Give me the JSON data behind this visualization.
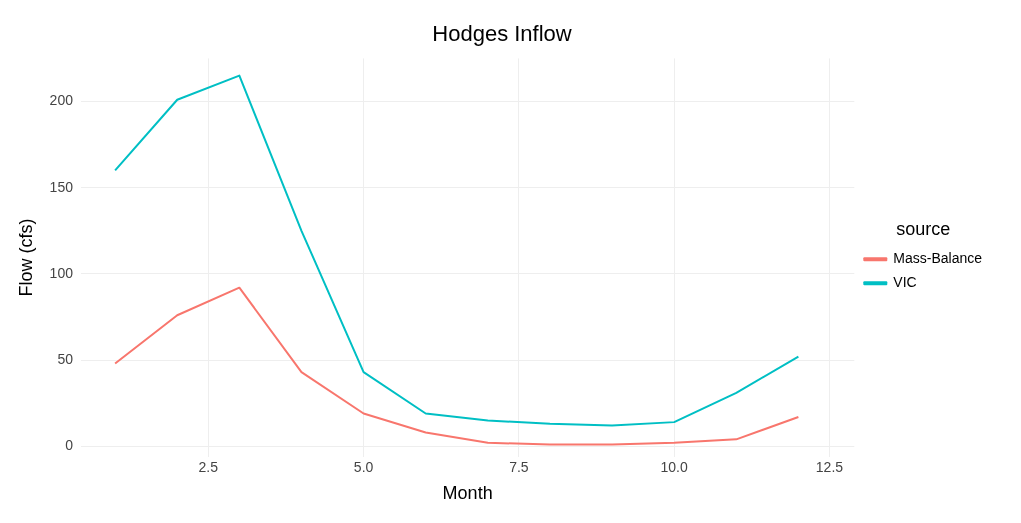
{
  "chart_data": {
    "type": "line",
    "title": "Hodges Inflow",
    "xlabel": "Month",
    "ylabel": "Flow (cfs)",
    "legend_title": "source",
    "x": [
      1,
      2,
      3,
      4,
      5,
      6,
      7,
      8,
      9,
      10,
      11,
      12
    ],
    "series": [
      {
        "name": "Mass-Balance",
        "color": "#f8766d",
        "values": [
          48,
          76,
          92,
          43,
          19,
          8,
          2,
          1,
          1,
          2,
          4,
          17
        ]
      },
      {
        "name": "VIC",
        "color": "#00bfc4",
        "values": [
          160,
          201,
          215,
          125,
          43,
          19,
          15,
          13,
          12,
          14,
          31,
          52
        ]
      }
    ],
    "xlim": [
      0.45,
      12.9
    ],
    "xticks": [
      {
        "value": 2.5,
        "label": "2.5"
      },
      {
        "value": 5,
        "label": "5.0"
      },
      {
        "value": 7.5,
        "label": "7.5"
      },
      {
        "value": 10,
        "label": "10.0"
      },
      {
        "value": 12.5,
        "label": "12.5"
      }
    ],
    "ylim": [
      -6,
      225
    ],
    "yticks": [
      0,
      50,
      100,
      150,
      200
    ],
    "grid": true,
    "legend": "right",
    "marker": "none",
    "line_style": "solid"
  }
}
